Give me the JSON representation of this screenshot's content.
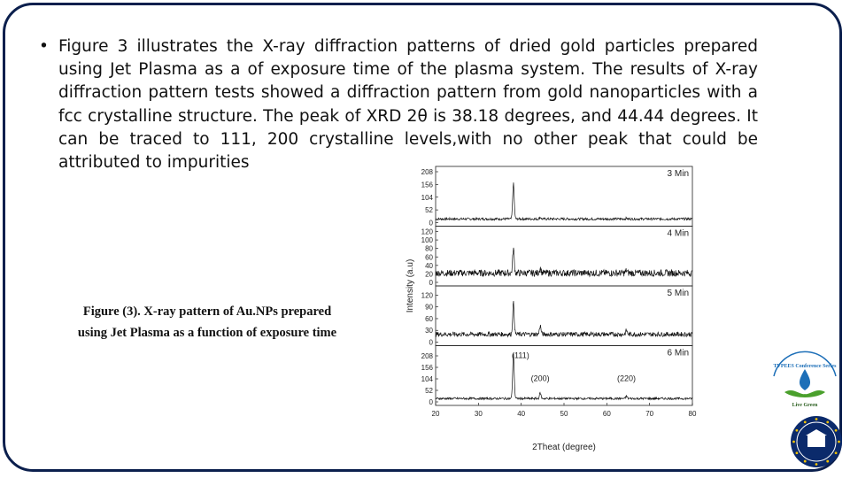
{
  "slide": {
    "bullet_symbol": "•",
    "paragraph": "Figure 3 illustrates the X-ray diffraction patterns of dried gold particles prepared using Jet Plasma as a of exposure time of the plasma system. The results of X-ray diffraction pattern tests showed a diffraction pattern from gold nanoparticles with a fcc crystalline structure. The peak of XRD 2θ is 38.18 degrees, and 44.44 degrees. It can be traced to 111, 200 crystalline levels,with no other peak that could be attributed to impurities",
    "caption_line1": "Figure (3).  X-ray pattern of Au.NPs prepared",
    "caption_line2": "using Jet Plasma as a function of exposure time"
  },
  "chart_data": {
    "type": "line",
    "xlabel": "2Theat (degree)",
    "ylabel": "Intensity (a.u)",
    "x_ticks": [
      "20",
      "30",
      "40",
      "50",
      "60",
      "70",
      "80"
    ],
    "xlim": [
      20,
      80
    ],
    "panels": [
      {
        "name": "3 Min",
        "y_ticks": [
          "0",
          "52",
          "104",
          "156",
          "208"
        ],
        "ylim": [
          0,
          208
        ],
        "baseline": 15,
        "noise": 5,
        "peaks": [
          {
            "x": 38.18,
            "y": 160
          },
          {
            "x": 44.44,
            "y": 22
          },
          {
            "x": 64.6,
            "y": 18
          }
        ]
      },
      {
        "name": "4 Min",
        "y_ticks": [
          "0",
          "20",
          "40",
          "60",
          "80",
          "100",
          "120"
        ],
        "ylim": [
          0,
          120
        ],
        "baseline": 22,
        "noise": 8,
        "peaks": [
          {
            "x": 38.18,
            "y": 80
          },
          {
            "x": 44.44,
            "y": 34
          },
          {
            "x": 64.6,
            "y": 28
          }
        ]
      },
      {
        "name": "5 Min",
        "y_ticks": [
          "0",
          "30",
          "60",
          "90",
          "120"
        ],
        "ylim": [
          0,
          130
        ],
        "baseline": 20,
        "noise": 6,
        "peaks": [
          {
            "x": 38.18,
            "y": 100
          },
          {
            "x": 44.44,
            "y": 42
          },
          {
            "x": 64.6,
            "y": 30
          }
        ]
      },
      {
        "name": "6 Min",
        "y_ticks": [
          "0",
          "52",
          "104",
          "156",
          "208"
        ],
        "ylim": [
          0,
          230
        ],
        "baseline": 15,
        "noise": 5,
        "peaks": [
          {
            "x": 38.18,
            "y": 215
          },
          {
            "x": 44.44,
            "y": 40
          },
          {
            "x": 64.6,
            "y": 26
          }
        ]
      }
    ],
    "peak_labels": [
      {
        "text": "(111)",
        "x": 38.18
      },
      {
        "text": "(200)",
        "x": 44.44
      },
      {
        "text": "(220)",
        "x": 64.6
      }
    ]
  },
  "logos": {
    "top_badge_text": "TVPEES Conference Series",
    "top_badge_sub": "Live Green",
    "accent_blue": "#1d6fb8",
    "accent_green": "#4aa02c",
    "seal_color": "#0b2a6b",
    "seal_star_color": "#f2c200"
  }
}
